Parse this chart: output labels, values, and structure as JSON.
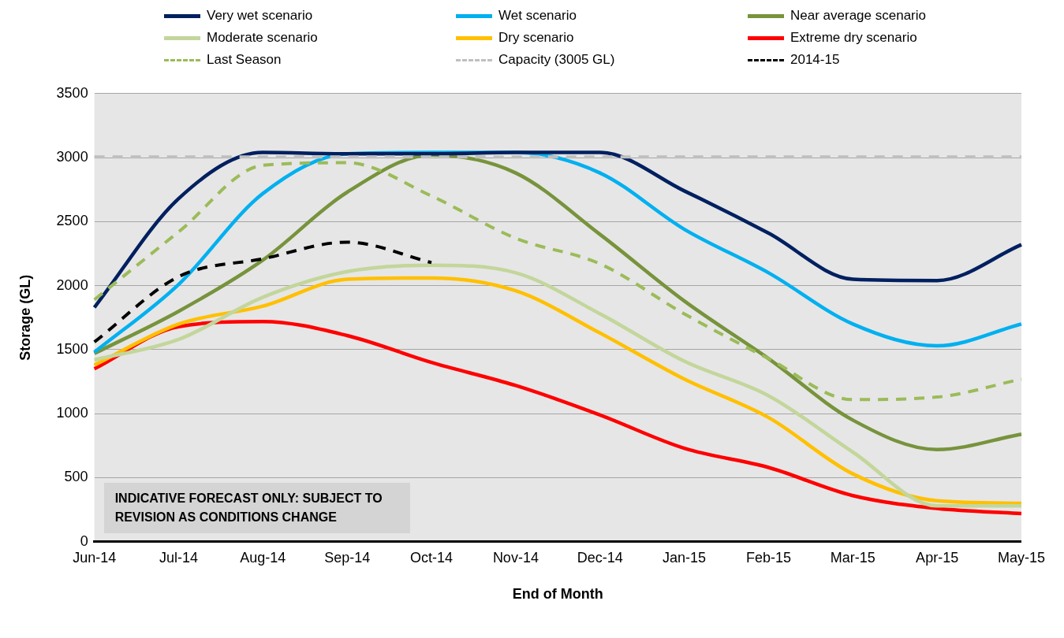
{
  "chart_data": {
    "type": "line",
    "xlabel": "End of Month",
    "ylabel": "Storage (GL)",
    "categories": [
      "Jun-14",
      "Jul-14",
      "Aug-14",
      "Sep-14",
      "Oct-14",
      "Nov-14",
      "Dec-14",
      "Jan-15",
      "Feb-15",
      "Mar-15",
      "Apr-15",
      "May-15"
    ],
    "series": [
      {
        "name": "Very wet scenario",
        "color": "#002060",
        "line_style": "solid",
        "values": [
          1830,
          2680,
          3040,
          3030,
          3030,
          3040,
          3040,
          2740,
          2410,
          2050,
          2040,
          2320
        ]
      },
      {
        "name": "Wet scenario",
        "color": "#00b0f0",
        "line_style": "solid",
        "values": [
          1480,
          2010,
          2720,
          3030,
          3040,
          3040,
          2880,
          2440,
          2100,
          1700,
          1530,
          1700
        ]
      },
      {
        "name": "Near average scenario",
        "color": "#77933c",
        "line_style": "solid",
        "values": [
          1470,
          1800,
          2200,
          2730,
          3020,
          2880,
          2400,
          1880,
          1430,
          950,
          720,
          840
        ]
      },
      {
        "name": "Moderate scenario",
        "color": "#c3d69b",
        "line_style": "solid",
        "values": [
          1420,
          1580,
          1910,
          2110,
          2160,
          2100,
          1780,
          1410,
          1140,
          700,
          280,
          280
        ]
      },
      {
        "name": "Dry scenario",
        "color": "#ffc000",
        "line_style": "solid",
        "values": [
          1380,
          1700,
          1840,
          2050,
          2060,
          1960,
          1630,
          1270,
          970,
          530,
          320,
          300
        ]
      },
      {
        "name": "Extreme dry scenario",
        "color": "#ff0000",
        "line_style": "solid",
        "values": [
          1350,
          1680,
          1720,
          1610,
          1400,
          1220,
          990,
          730,
          580,
          360,
          260,
          220
        ]
      },
      {
        "name": "Last Season",
        "color": "#9bbb59",
        "line_style": "dashed",
        "values": [
          1890,
          2420,
          2940,
          2960,
          2700,
          2370,
          2170,
          1780,
          1430,
          1110,
          1130,
          1270
        ]
      },
      {
        "name": "Capacity (3005 GL)",
        "color": "#bfbfbf",
        "line_style": "dashed",
        "values": [
          3005,
          3005,
          3005,
          3005,
          3005,
          3005,
          3005,
          3005,
          3005,
          3005,
          3005,
          3005
        ]
      },
      {
        "name": "2014-15",
        "color": "#000000",
        "line_style": "dashed",
        "values": [
          1560,
          2070,
          2210,
          2340,
          2180,
          null,
          null,
          null,
          null,
          null,
          null,
          null
        ]
      }
    ],
    "ylim": [
      0,
      3500
    ],
    "yticks": [
      0,
      500,
      1000,
      1500,
      2000,
      2500,
      3000,
      3500
    ],
    "grid": "y",
    "legend": "top",
    "marker": "none",
    "annotations": [
      "INDICATIVE FORECAST ONLY: SUBJECT TO REVISION AS CONDITIONS CHANGE"
    ]
  }
}
